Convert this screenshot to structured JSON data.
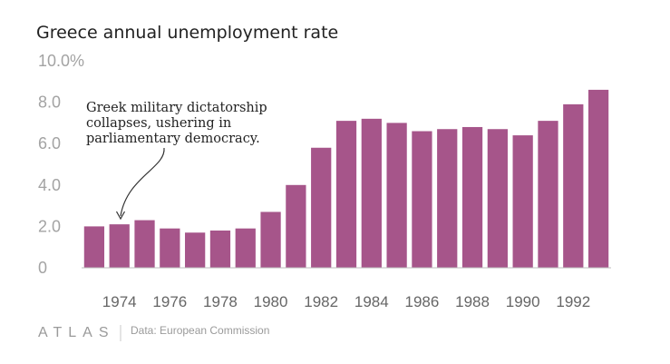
{
  "chart_data": {
    "type": "bar",
    "title": "Greece annual unemployment rate",
    "categories": [
      "1973",
      "1974",
      "1975",
      "1976",
      "1977",
      "1978",
      "1979",
      "1980",
      "1981",
      "1982",
      "1983",
      "1984",
      "1985",
      "1986",
      "1987",
      "1988",
      "1989",
      "1990",
      "1991",
      "1992",
      "1993"
    ],
    "values": [
      2.0,
      2.1,
      2.3,
      1.9,
      1.7,
      1.8,
      1.9,
      2.7,
      4.0,
      5.8,
      7.1,
      7.2,
      7.0,
      6.6,
      6.7,
      6.8,
      6.7,
      6.4,
      7.1,
      7.9,
      8.6
    ],
    "xtick_labels": [
      "1974",
      "1976",
      "1978",
      "1980",
      "1982",
      "1984",
      "1986",
      "1988",
      "1990",
      "1992"
    ],
    "ytick_labels": [
      "0",
      "2.0",
      "4.0",
      "6.0",
      "8.0",
      "10.0%"
    ],
    "ylim": [
      0,
      10
    ],
    "xlabel": "",
    "ylabel": "",
    "grid": false,
    "bar_color": "#a6558a",
    "annotation": {
      "target_category": "1974",
      "lines": [
        "Greek military dictatorship",
        "collapses, ushering in",
        "parliamentary democracy."
      ]
    }
  },
  "footer": {
    "brand": "ATLAS",
    "source": "Data: European Commission"
  }
}
